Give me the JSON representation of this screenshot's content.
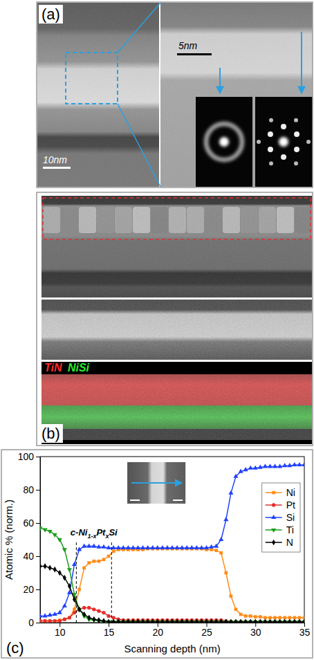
{
  "panels": {
    "a": {
      "label": "(a)",
      "scale_bar_left": "10nm",
      "scale_bar_right": "5nm"
    },
    "b": {
      "label": "(b)",
      "map_labels": [
        {
          "text": "TiN",
          "color": "#ff2a2a"
        },
        {
          "text": "NiSi",
          "color": "#2ee82e"
        }
      ]
    },
    "c": {
      "label": "(c)"
    }
  },
  "chart_data": {
    "type": "line",
    "x_label": "Scanning depth (nm)",
    "y_label": "Atomic % (norm.)",
    "annotation": [
      "c-Ni",
      "1-x",
      "Pt",
      "x",
      "Si"
    ],
    "vlines": [
      11.7,
      15.3
    ],
    "x": [
      8,
      8.5,
      9,
      9.5,
      10,
      10.5,
      11,
      11.5,
      12,
      12.5,
      13,
      13.5,
      14,
      14.5,
      15,
      15.5,
      16,
      16.5,
      17,
      17.5,
      18,
      18.5,
      19,
      19.5,
      20,
      20.5,
      21,
      21.5,
      22,
      22.5,
      23,
      23.5,
      24,
      24.5,
      25,
      25.5,
      26,
      26.5,
      27,
      27.5,
      28,
      28.5,
      29,
      29.5,
      30,
      30.5,
      31,
      31.5,
      32,
      32.5,
      33,
      33.5,
      34,
      34.5,
      35
    ],
    "series": [
      {
        "name": "Ni",
        "color": "#ff8c1a",
        "marker": "square",
        "values": [
          1,
          1,
          1,
          1,
          1.5,
          2,
          3,
          8,
          20,
          33,
          36,
          37,
          37,
          38,
          40,
          43,
          44,
          44,
          44,
          44,
          44,
          44,
          44.5,
          44.5,
          44.5,
          44.5,
          44.5,
          44.5,
          44.5,
          44.5,
          44.5,
          44.5,
          44.5,
          44.5,
          44,
          44,
          43.5,
          42,
          30,
          16,
          8,
          5,
          4,
          4,
          3.5,
          3.5,
          3,
          3,
          3,
          3,
          3,
          3,
          3,
          3,
          3
        ]
      },
      {
        "name": "Pt",
        "color": "#e62e2e",
        "marker": "circle",
        "values": [
          1,
          1,
          1,
          1,
          1,
          2,
          3,
          6,
          8,
          9,
          9,
          8,
          7,
          6,
          4,
          3,
          2,
          1.5,
          1.5,
          1.5,
          1.5,
          1.5,
          1.5,
          1.5,
          1.5,
          1.5,
          1.5,
          1.5,
          1.5,
          1.5,
          1.5,
          1.5,
          1.5,
          1.5,
          1.5,
          1.5,
          1.5,
          1.5,
          1,
          0.5,
          0.5,
          0.5,
          0.5,
          0.5,
          0.5,
          0.5,
          0.5,
          0.5,
          0.5,
          0.5,
          0.5,
          0.5,
          0.5,
          0.5,
          0.5
        ]
      },
      {
        "name": "Si",
        "color": "#2040ff",
        "marker": "triangle-up",
        "values": [
          4,
          4,
          4.5,
          5,
          6,
          10,
          18,
          35,
          44,
          46,
          46,
          46,
          45.5,
          45.5,
          45,
          45,
          45,
          45,
          45,
          45,
          45,
          45,
          45,
          45,
          45,
          45,
          45,
          45,
          45,
          45,
          45,
          45,
          45,
          45,
          45,
          45.5,
          46,
          50,
          62,
          78,
          88,
          91,
          92,
          93,
          93,
          93.5,
          94,
          94,
          94,
          94,
          94.5,
          94.5,
          95,
          95,
          95
        ]
      },
      {
        "name": "Ti",
        "color": "#1a9e1a",
        "marker": "triangle-down",
        "values": [
          57,
          56,
          55,
          53,
          50,
          44,
          32,
          17,
          8,
          4,
          2,
          1.5,
          1,
          0.5,
          0.5,
          0.5,
          0.5,
          0.5,
          0.5,
          0.5,
          0.5,
          0.5,
          0.5,
          0.5,
          0.5,
          0.5,
          0.5,
          0.5,
          0.5,
          0.5,
          0.5,
          0.5,
          0.5,
          0.5,
          0.5,
          0.5,
          0.5,
          0.5,
          0.5,
          0.5,
          0.5,
          0.5,
          0.5,
          0.5,
          0.5,
          0.5,
          0.5,
          0.5,
          0.5,
          0.5,
          0.5,
          0.5,
          0.5,
          0.5,
          0.5
        ]
      },
      {
        "name": "N",
        "color": "#000000",
        "marker": "diamond",
        "values": [
          34,
          34,
          33,
          32,
          30,
          27,
          22,
          14,
          8,
          5,
          3,
          2,
          1.5,
          1,
          0.5,
          0.5,
          0.5,
          0.5,
          0.5,
          0.5,
          0.5,
          0.5,
          0.5,
          0.5,
          0.5,
          0.5,
          0.5,
          0.5,
          0.5,
          0.5,
          0.5,
          0.5,
          0.5,
          0.5,
          0.5,
          0.5,
          0.5,
          0.5,
          0.5,
          0.5,
          0.5,
          0.5,
          0.5,
          0.5,
          0.5,
          0.5,
          0.5,
          0.5,
          0.5,
          0.5,
          0.5,
          0.5,
          0.5,
          0.5,
          0.5
        ]
      }
    ],
    "xlim": [
      8,
      35
    ],
    "xticks": [
      10,
      15,
      20,
      25,
      30,
      35
    ],
    "ylim": [
      0,
      100
    ],
    "yticks": [
      0,
      20,
      40,
      60,
      80,
      100
    ],
    "legend": "right"
  }
}
